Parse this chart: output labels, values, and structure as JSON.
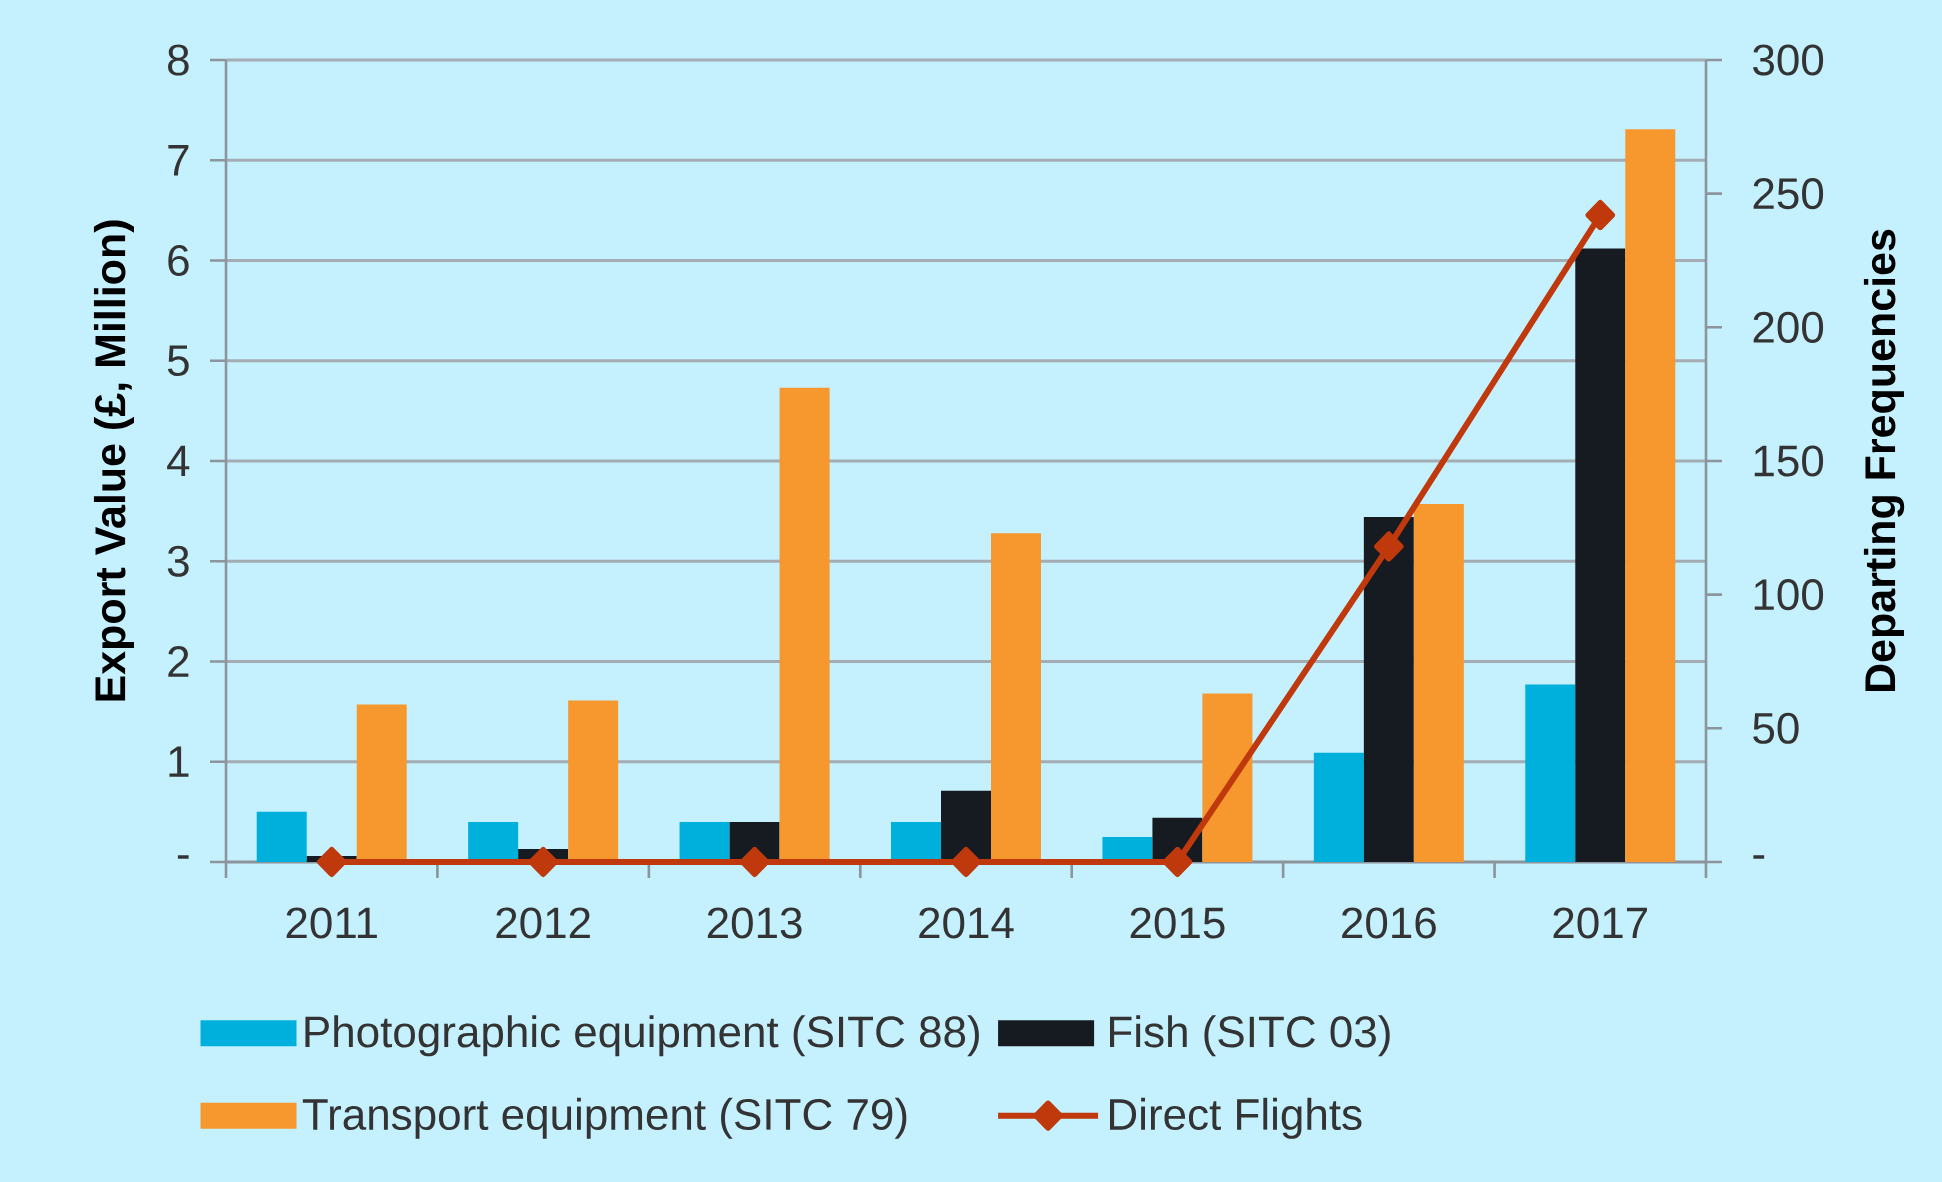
{
  "chart_data": {
    "type": "bar",
    "categories": [
      "2011",
      "2012",
      "2013",
      "2014",
      "2015",
      "2016",
      "2017"
    ],
    "ylabel": "Export Value (£, Million)",
    "y2label": "Departing Frequencies",
    "ylim": [
      0,
      8
    ],
    "yticks": [
      {
        "value": 0,
        "label": "-"
      },
      1,
      2,
      3,
      4,
      5,
      6,
      7,
      8
    ],
    "y2lim": [
      0,
      300
    ],
    "y2ticks": [
      {
        "value": 0,
        "label": "-"
      },
      50,
      100,
      150,
      200,
      250,
      300
    ],
    "grid": "y",
    "legend": "bottom",
    "series": [
      {
        "name": "Photographic equipment (SITC 88)",
        "color": "#00b0dc",
        "values": [
          0.5,
          0.4,
          0.4,
          0.4,
          0.25,
          1.09,
          1.77
        ]
      },
      {
        "name": "Fish (SITC 03)",
        "color": "#161b22",
        "values": [
          0.06,
          0.13,
          0.4,
          0.71,
          0.44,
          3.44,
          6.12
        ]
      },
      {
        "name": "Transport equipment (SITC 79)",
        "color": "#f7982f",
        "values": [
          1.57,
          1.61,
          4.73,
          3.28,
          1.68,
          3.57,
          7.31
        ]
      },
      {
        "name": "Direct Flights",
        "type": "line",
        "axis": "y2",
        "marker": "diamond",
        "color": "#c0390c",
        "values": [
          0,
          0,
          0,
          0,
          0,
          118,
          242
        ]
      }
    ]
  }
}
